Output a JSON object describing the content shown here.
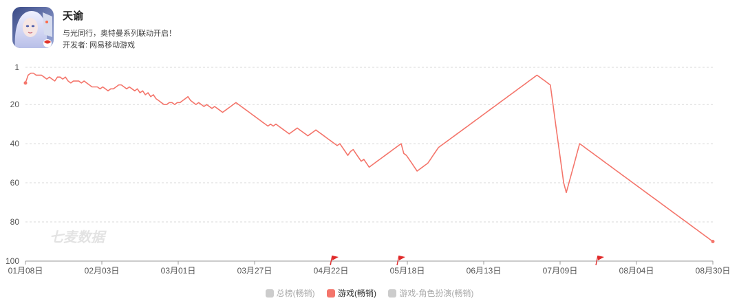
{
  "app": {
    "title": "天谕",
    "slogan": "与光同行，奥特曼系列联动开启！",
    "developer": "开发者: 网易移动游戏"
  },
  "watermark": "七麦数据",
  "legend": [
    {
      "label": "总榜(畅销)",
      "color": "#cccccc",
      "active": false
    },
    {
      "label": "游戏(畅销)",
      "color": "#f4756b",
      "active": true
    },
    {
      "label": "游戏-角色扮演(畅销)",
      "color": "#cccccc",
      "active": false
    }
  ],
  "chart_data": {
    "type": "line",
    "title": "",
    "xlabel": "",
    "ylabel": "",
    "y_inverted": true,
    "ylim": [
      1,
      100
    ],
    "yticks": [
      "1",
      "20",
      "40",
      "60",
      "80",
      "100"
    ],
    "xticks": [
      "01月08日",
      "02月03日",
      "03月01日",
      "03月27日",
      "04月22日",
      "05月18日",
      "06月13日",
      "07月09日",
      "08月04日",
      "08月30日"
    ],
    "x_start": "01月08日",
    "x_end": "08月30日",
    "grid": true,
    "line_color": "#f4756b",
    "event_markers": [
      "04月20日",
      "05月16日",
      "07月25日"
    ],
    "series": [
      {
        "name": "游戏(畅销)",
        "values": [
          9,
          5,
          4,
          4,
          5,
          5,
          5,
          6,
          7,
          6,
          7,
          8,
          6,
          6,
          7,
          6,
          8,
          9,
          8,
          8,
          8,
          9,
          8,
          9,
          10,
          11,
          11,
          11,
          12,
          11,
          12,
          13,
          12,
          12,
          11,
          10,
          10,
          11,
          12,
          11,
          12,
          13,
          12,
          14,
          13,
          15,
          14,
          16,
          15,
          17,
          18,
          19,
          20,
          20,
          19,
          19,
          20,
          19,
          19,
          18,
          17,
          16,
          18,
          19,
          20,
          19,
          20,
          21,
          20,
          21,
          22,
          21,
          22,
          23,
          24,
          23,
          22,
          21,
          20,
          19,
          20,
          21,
          22,
          23,
          24,
          25,
          26,
          27,
          28,
          29,
          30,
          31,
          30,
          31,
          30,
          31,
          32,
          33,
          34,
          35,
          34,
          33,
          32,
          33,
          34,
          35,
          36,
          35,
          34,
          33,
          34,
          35,
          36,
          37,
          38,
          39,
          40,
          41,
          40,
          42,
          44,
          46,
          44,
          43,
          45,
          47,
          49,
          48,
          50,
          52,
          51,
          50,
          49,
          48,
          47,
          46,
          45,
          44,
          43,
          42,
          41,
          40,
          45,
          46,
          48,
          50,
          52,
          54,
          53,
          52,
          51,
          50,
          48,
          46,
          44,
          42,
          41,
          40,
          39,
          38,
          37,
          36,
          35,
          34,
          33,
          32,
          31,
          30,
          29,
          28,
          27,
          26,
          25,
          24,
          23,
          22,
          21,
          20,
          19,
          18,
          17,
          16,
          15,
          14,
          13,
          12,
          11,
          10,
          9,
          8,
          7,
          6,
          5,
          6,
          7,
          8,
          9,
          10,
          20,
          30,
          40,
          50,
          60,
          65,
          60,
          55,
          50,
          45,
          40,
          41,
          42,
          43,
          44,
          45,
          46,
          47,
          48,
          49,
          50,
          51,
          52,
          53,
          54,
          55,
          56,
          57,
          58,
          59,
          60,
          61,
          62,
          63,
          64,
          65,
          66,
          67,
          68,
          69,
          70,
          71,
          72,
          73,
          74,
          75,
          76,
          77,
          78,
          79,
          80,
          81,
          82,
          83,
          84,
          85,
          86,
          87,
          88,
          89,
          90
        ]
      }
    ]
  }
}
